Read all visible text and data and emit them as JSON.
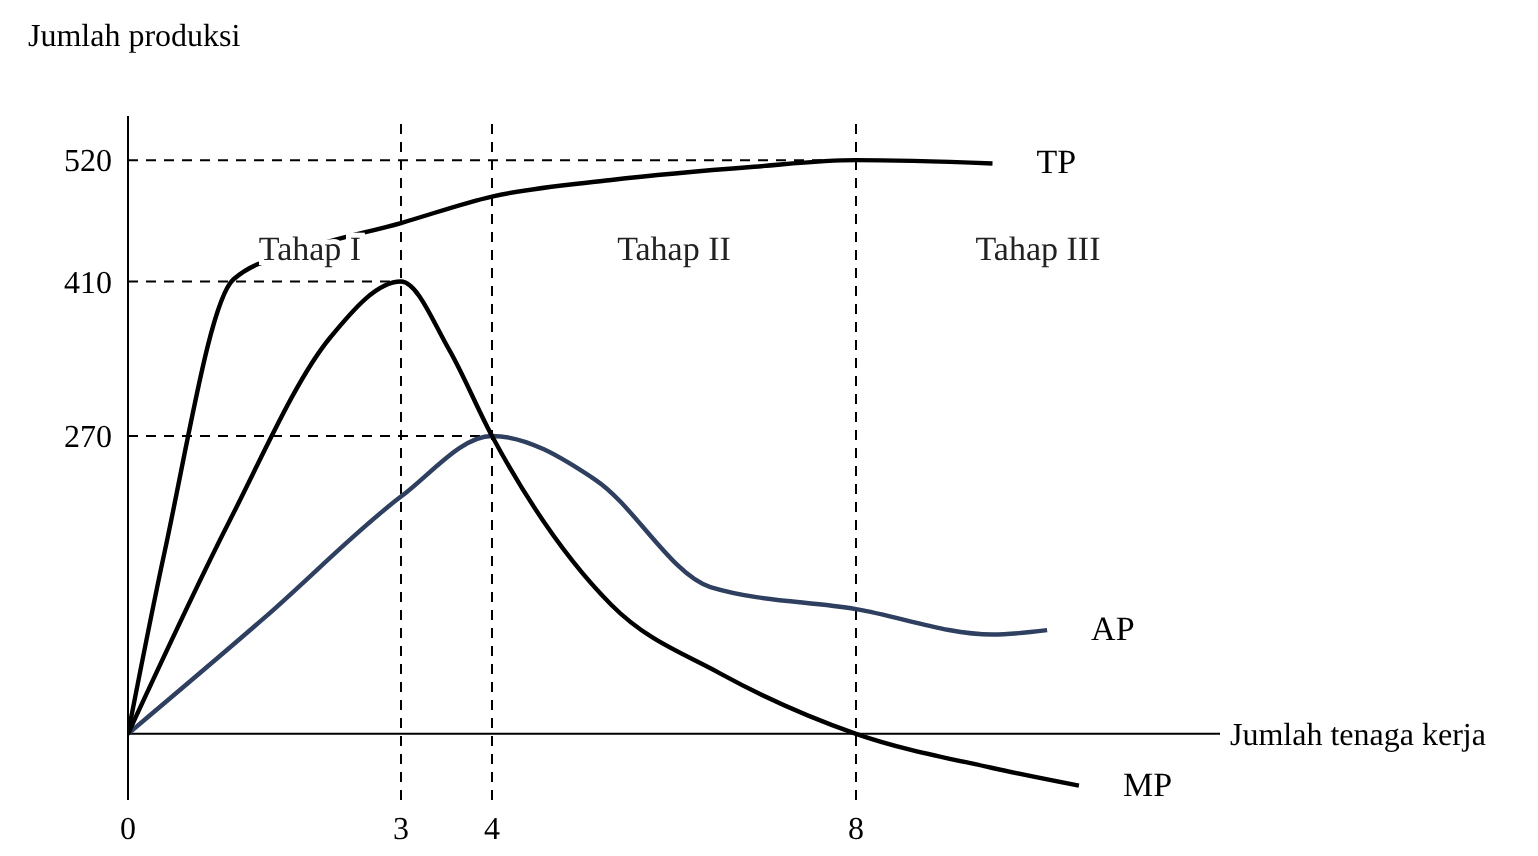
{
  "chart_data": {
    "type": "line",
    "ylabel": "Jumlah produksi",
    "xlabel": "Jumlah tenaga kerja",
    "xlim": [
      0,
      12
    ],
    "xticks": [
      0,
      3,
      4,
      8
    ],
    "ylim": [
      -60,
      560
    ],
    "yticks": [
      270,
      410,
      520
    ],
    "grid": false,
    "marker": "none",
    "line_style": "solid",
    "series": [
      {
        "name": "TP",
        "color": "#000000",
        "x": [
          0,
          0.4,
          1.16,
          1.89,
          3,
          4,
          5.31,
          6.88,
          8,
          9.5
        ],
        "values": [
          0,
          164,
          412,
          438,
          463,
          487,
          502,
          514,
          520,
          517
        ]
      },
      {
        "name": "AP",
        "color": "#2e3f5f",
        "x": [
          0,
          1.51,
          3,
          4,
          5.14,
          6.4,
          8,
          9.5,
          10.1
        ],
        "values": [
          0,
          106,
          215,
          270,
          230,
          133,
          113,
          90,
          94
        ]
      },
      {
        "name": "MP",
        "color": "#000000",
        "x": [
          0,
          1.11,
          2.22,
          3,
          3.53,
          4,
          5.31,
          6.5,
          8,
          9.5,
          10.45
        ],
        "values": [
          0,
          192,
          359,
          410,
          348,
          270,
          117,
          55,
          0,
          -31,
          -47
        ]
      }
    ],
    "ref_lines": [
      {
        "axis": "x",
        "value": 3,
        "line_style": "dashed"
      },
      {
        "axis": "x",
        "value": 4,
        "line_style": "dashed"
      },
      {
        "axis": "x",
        "value": 8,
        "line_style": "dashed"
      },
      {
        "axis": "y",
        "value": 520,
        "line_style": "dashed"
      },
      {
        "axis": "y",
        "value": 410,
        "line_style": "dashed"
      },
      {
        "axis": "y",
        "value": 270,
        "line_style": "dashed"
      }
    ],
    "annotations": [
      "Tahap I",
      "Tahap II",
      "Tahap III"
    ]
  }
}
